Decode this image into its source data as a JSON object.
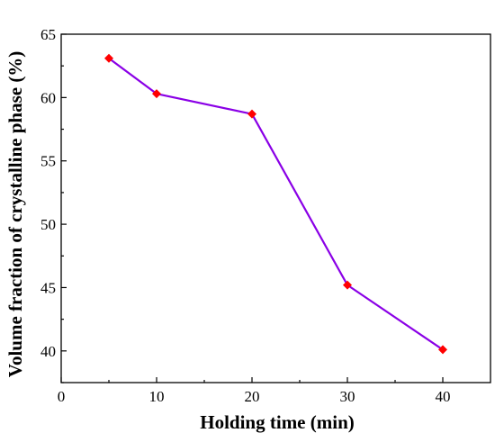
{
  "chart_data": {
    "type": "line",
    "title": "",
    "xlabel": "Holding time (min)",
    "ylabel": "Volume fraction of crystalline phase (%)",
    "xlim": [
      0,
      45
    ],
    "ylim": [
      37.5,
      65
    ],
    "xticks": [
      0,
      10,
      20,
      30,
      40
    ],
    "yticks": [
      40,
      45,
      50,
      55,
      60,
      65
    ],
    "grid": false,
    "legend": "none",
    "series": [
      {
        "x": [
          5,
          10,
          20,
          30,
          40
        ],
        "y": [
          63.1,
          60.3,
          58.7,
          45.2,
          40.1
        ],
        "line_color": "#8a00e6",
        "marker_color": "#ff0000",
        "marker": "diamond"
      }
    ]
  }
}
